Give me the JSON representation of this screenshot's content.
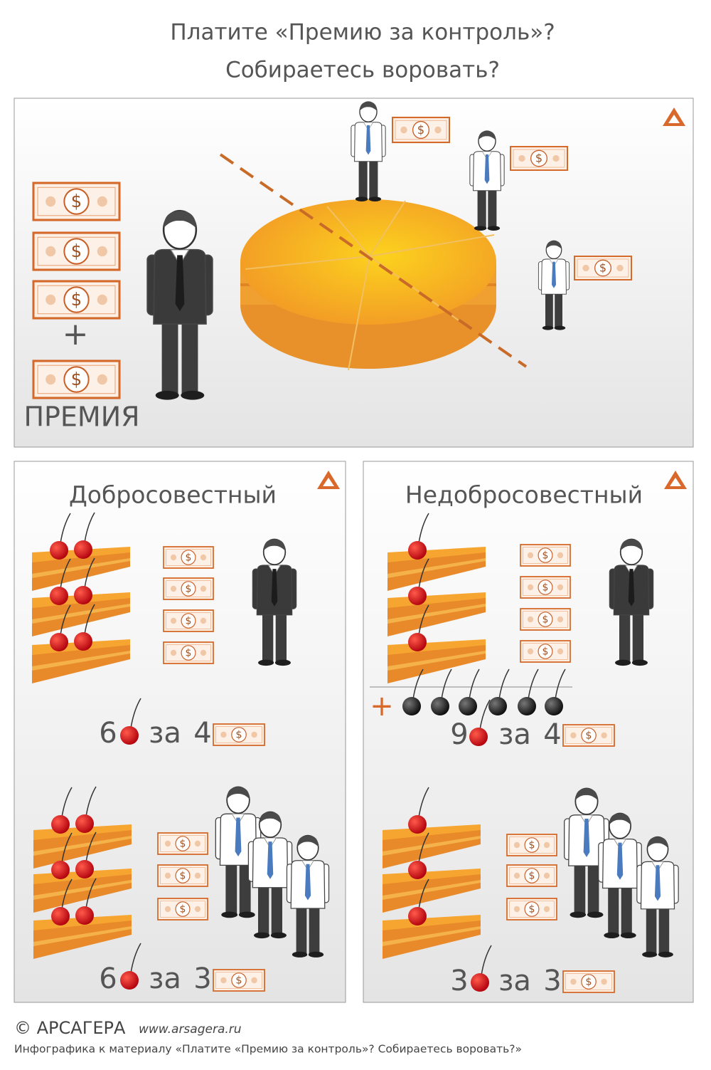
{
  "header": {
    "title_line1": "Платите «Премию за контроль»?",
    "title_line2": "Собираетесь воровать?"
  },
  "top_panel": {
    "plus": "+",
    "bonus_label": "ПРЕМИЯ"
  },
  "currency_symbol": "$",
  "panels": [
    {
      "title": "Добросовестный",
      "rows": [
        {
          "cherries": 6,
          "word": "за",
          "bills": 4
        },
        {
          "cherries": 6,
          "word": "за",
          "bills": 3
        }
      ]
    },
    {
      "title": "Недобросовестный",
      "plus": "+",
      "rows": [
        {
          "cherries": 9,
          "word": "за",
          "bills": 4
        },
        {
          "cherries": 3,
          "word": "за",
          "bills": 3
        }
      ]
    }
  ],
  "footer": {
    "brand": "© АРСАГЕРА",
    "url": "www.arsagera.ru",
    "caption": "Инфографика к материалу «Платите «Премию за контроль»? Собираетесь воровать?»"
  }
}
